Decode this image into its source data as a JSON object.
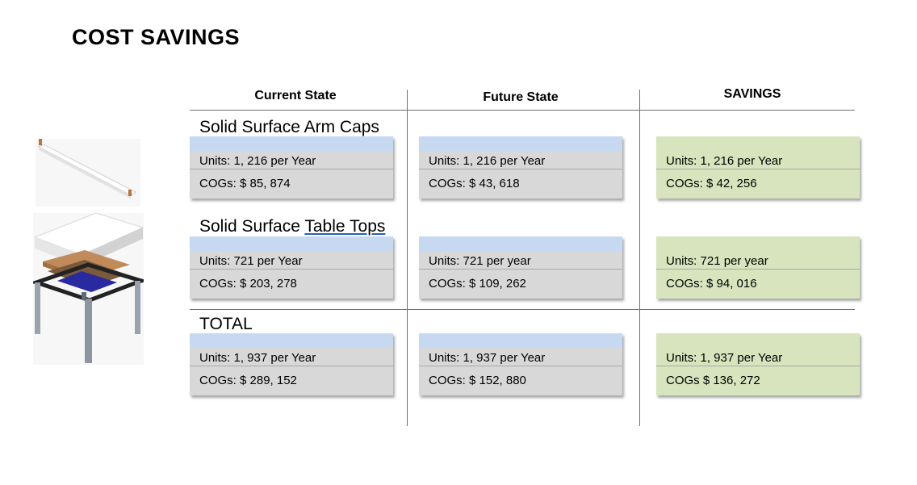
{
  "title": "COST SAVINGS",
  "columns": {
    "current": "Current State",
    "future": "Future State",
    "savings": "SAVINGS"
  },
  "sections": [
    {
      "label_a": "Solid Surface Arm Caps",
      "label_b": "",
      "current": {
        "units": "Units: 1, 216 per Year",
        "cogs": "COGs: $ 85, 874"
      },
      "future": {
        "units": "Units: 1, 216 per Year",
        "cogs": "COGs: $ 43, 618"
      },
      "savings": {
        "units": "Units: 1, 216 per Year",
        "cogs": "COGs: $ 42, 256"
      }
    },
    {
      "label_a": "Solid Surface ",
      "label_b": "Table Tops",
      "current": {
        "units": "Units: 721 per Year",
        "cogs": "COGs: $ 203, 278"
      },
      "future": {
        "units": "Units: 721 per year",
        "cogs": "COGs: $ 109, 262"
      },
      "savings": {
        "units": "Units: 721 per year",
        "cogs": "COGs: $ 94, 016"
      }
    },
    {
      "label_a": "TOTAL",
      "label_b": "",
      "current": {
        "units": "Units: 1, 937 per Year",
        "cogs": "COGs: $ 289, 152"
      },
      "future": {
        "units": "Units: 1, 937 per Year",
        "cogs": "COGs: $ 152, 880"
      },
      "savings": {
        "units": "Units: 1, 937 per Year",
        "cogs": "COGs $ 136, 272"
      }
    }
  ],
  "colors": {
    "state_bar": "#c6d9f0",
    "state_body": "#d8d8d8",
    "savings": "#d7e4bd"
  }
}
